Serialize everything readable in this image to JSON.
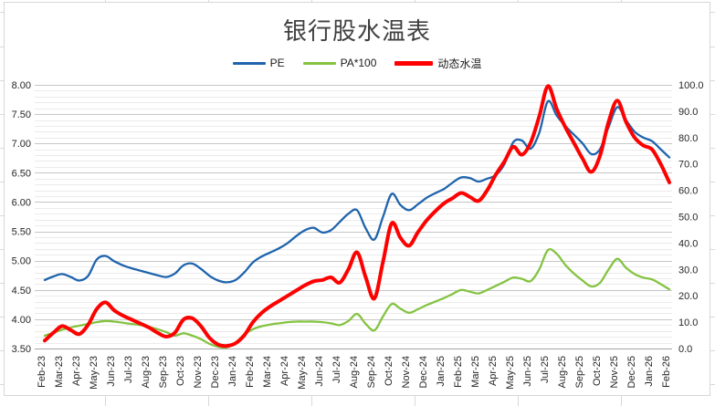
{
  "title": "银行股水温表",
  "legend": {
    "items": [
      {
        "label": "PE",
        "color": "#1f64ad",
        "thickness": 3
      },
      {
        "label": "PA*100",
        "color": "#84c341",
        "thickness": 3
      },
      {
        "label": "动态水温",
        "color": "#fe0000",
        "thickness": 5
      }
    ]
  },
  "colors": {
    "grid_major": "#c6c6c6",
    "grid_minor": "#ebebeb",
    "axis_line": "#a6a6a6",
    "tick_text": "#262626",
    "title_text": "#404040",
    "sheet_grid": "#d9d9d9"
  },
  "chart_data": {
    "type": "line",
    "title": "银行股水温表",
    "legend_position": "top",
    "grid": "horizontal major + minor",
    "x_labels": [
      "Feb-23",
      "Mar-23",
      "Apr-23",
      "May-23",
      "Jun-23",
      "Jul-23",
      "Aug-23",
      "Sep-23",
      "Oct-23",
      "Nov-23",
      "Dec-23",
      "Jan-24",
      "Feb-24",
      "Mar-24",
      "Apr-24",
      "May-24",
      "Jun-24",
      "Jul-24",
      "Aug-24",
      "Sep-24",
      "Oct-24",
      "Nov-24",
      "Dec-24",
      "Jan-25",
      "Feb-25",
      "Mar-25",
      "Apr-25",
      "May-25",
      "Jun-25",
      "Jul-25",
      "Aug-25",
      "Sep-25",
      "Oct-25",
      "Nov-25",
      "Dec-25",
      "Jan-26",
      "Feb-26"
    ],
    "samples_per_month": 2,
    "left_axis": {
      "min": 3.5,
      "max": 8.0,
      "step": 0.5,
      "minor_step": 0.1,
      "tick_labels": [
        "8.00",
        "7.50",
        "7.00",
        "6.50",
        "6.00",
        "5.50",
        "5.00",
        "4.50",
        "4.00",
        "3.50"
      ]
    },
    "right_axis": {
      "min": 0,
      "max": 100,
      "step": 10,
      "tick_labels": [
        "100.0",
        "90.0",
        "80.0",
        "70.0",
        "60.0",
        "50.0",
        "40.0",
        "30.0",
        "20.0",
        "10.0",
        "0.0"
      ]
    },
    "series": [
      {
        "name": "PE",
        "axis": "left",
        "color": "#1f64ad",
        "width": 2.3,
        "values": [
          4.67,
          4.73,
          4.77,
          4.72,
          4.66,
          4.74,
          5.02,
          5.08,
          4.99,
          4.92,
          4.87,
          4.83,
          4.79,
          4.75,
          4.72,
          4.78,
          4.92,
          4.95,
          4.86,
          4.74,
          4.66,
          4.63,
          4.67,
          4.8,
          4.97,
          5.07,
          5.14,
          5.21,
          5.3,
          5.42,
          5.52,
          5.56,
          5.48,
          5.52,
          5.66,
          5.8,
          5.86,
          5.55,
          5.36,
          5.75,
          6.14,
          5.95,
          5.86,
          5.96,
          6.07,
          6.15,
          6.22,
          6.33,
          6.42,
          6.41,
          6.35,
          6.4,
          6.46,
          6.65,
          7.02,
          7.05,
          6.91,
          7.18,
          7.72,
          7.48,
          7.3,
          7.15,
          7.0,
          6.82,
          6.9,
          7.28,
          7.62,
          7.4,
          7.2,
          7.1,
          7.04,
          6.9,
          6.76
        ]
      },
      {
        "name": "PA*100",
        "axis": "left",
        "color": "#84c341",
        "width": 2.3,
        "values": [
          3.72,
          3.77,
          3.82,
          3.86,
          3.89,
          3.92,
          3.95,
          3.97,
          3.96,
          3.94,
          3.92,
          3.9,
          3.87,
          3.83,
          3.78,
          3.72,
          3.76,
          3.72,
          3.66,
          3.58,
          3.53,
          3.52,
          3.6,
          3.74,
          3.83,
          3.88,
          3.91,
          3.93,
          3.95,
          3.96,
          3.96,
          3.96,
          3.95,
          3.93,
          3.9,
          3.97,
          4.09,
          3.92,
          3.81,
          4.05,
          4.26,
          4.18,
          4.11,
          4.17,
          4.24,
          4.3,
          4.36,
          4.43,
          4.5,
          4.47,
          4.44,
          4.5,
          4.57,
          4.64,
          4.71,
          4.69,
          4.65,
          4.85,
          5.18,
          5.12,
          4.93,
          4.78,
          4.66,
          4.56,
          4.62,
          4.85,
          5.03,
          4.88,
          4.77,
          4.71,
          4.68,
          4.6,
          4.51
        ]
      },
      {
        "name": "动态水温",
        "axis": "right",
        "color": "#fe0000",
        "width": 4,
        "values": [
          3,
          6,
          8.5,
          7,
          5.5,
          9,
          15,
          17.5,
          14.5,
          12.5,
          11,
          9.5,
          8,
          6,
          4.5,
          6,
          11,
          11.5,
          8.5,
          4,
          1.5,
          1,
          2,
          5,
          10,
          13.5,
          16,
          18,
          20,
          22,
          24,
          25.5,
          26,
          27,
          25,
          30,
          36.5,
          27,
          19,
          33,
          47.5,
          42,
          39,
          44,
          48.5,
          52,
          55,
          57,
          59,
          57.5,
          56,
          60,
          66,
          71,
          76.5,
          73.5,
          78,
          88,
          99.5,
          91,
          84,
          78,
          72,
          67,
          73,
          86,
          94,
          86,
          80,
          77,
          75.5,
          70,
          63
        ]
      }
    ]
  }
}
